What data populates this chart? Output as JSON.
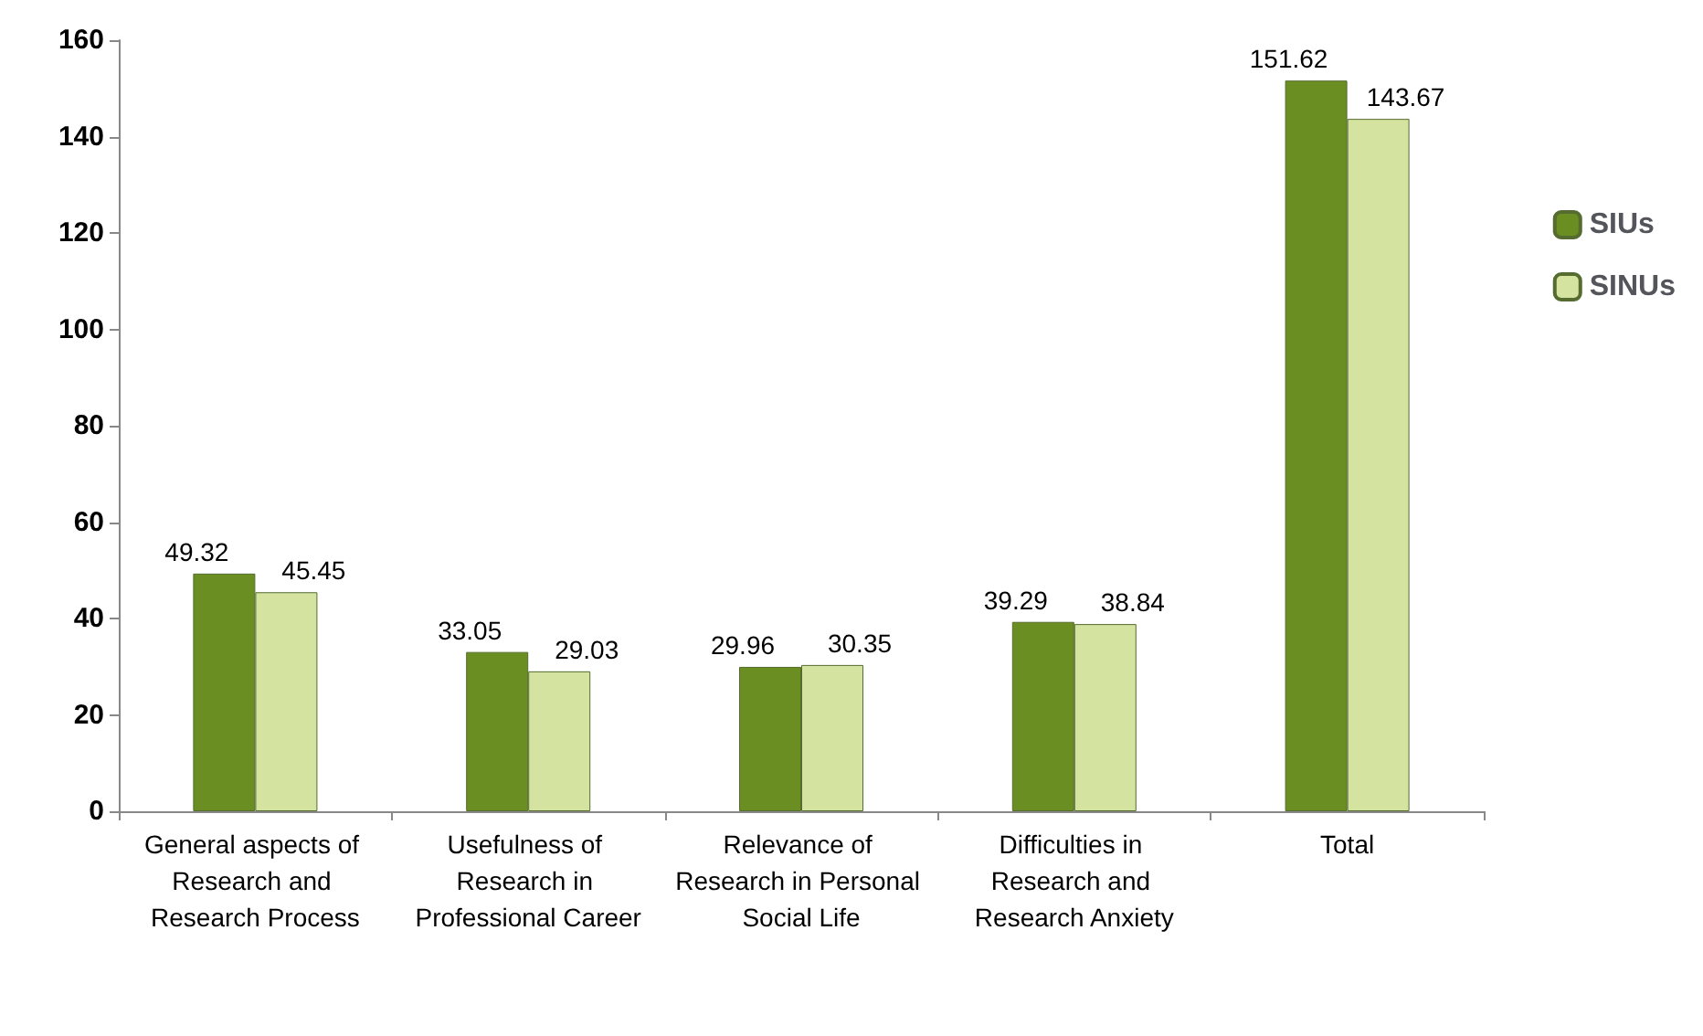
{
  "chart_data": {
    "type": "bar",
    "categories": [
      "General aspects of Research and Research Process",
      "Usefulness of Research in Professional Career",
      "Relevance of Research in Personal Social Life",
      "Difficulties in Research and Research Anxiety",
      "Total"
    ],
    "series": [
      {
        "name": "SIUs",
        "color": "#6b8e23",
        "values": [
          49.32,
          33.05,
          29.96,
          39.29,
          151.62
        ]
      },
      {
        "name": "SINUs",
        "color": "#d4e4a0",
        "values": [
          45.45,
          29.03,
          30.35,
          38.84,
          143.67
        ]
      }
    ],
    "ylim": [
      0,
      160
    ],
    "yticks": [
      0,
      20,
      40,
      60,
      80,
      100,
      120,
      140,
      160
    ],
    "data_labels": true,
    "grid": false,
    "legend": "right"
  }
}
